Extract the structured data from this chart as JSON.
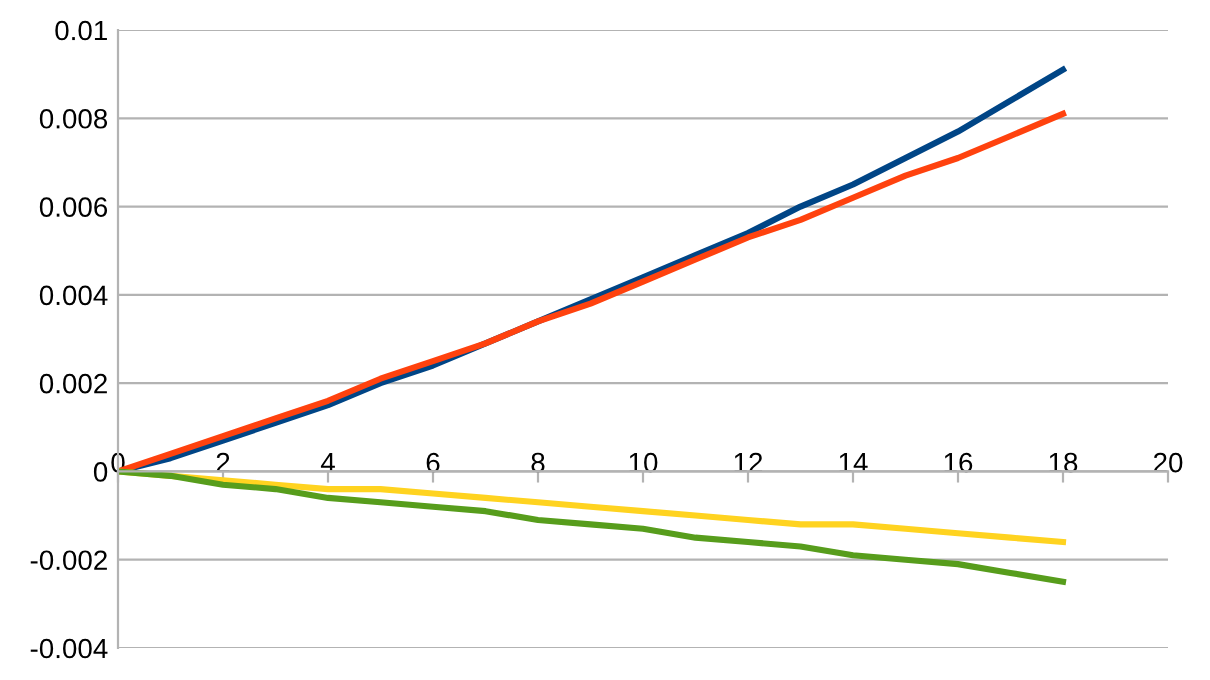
{
  "chart_data": {
    "type": "line",
    "x": [
      0,
      1,
      2,
      3,
      4,
      5,
      6,
      7,
      8,
      9,
      10,
      11,
      12,
      13,
      14,
      15,
      16,
      17,
      18
    ],
    "series": [
      {
        "color": "#004586",
        "values": [
          0,
          0.0003,
          0.0007,
          0.0011,
          0.0015,
          0.002,
          0.0024,
          0.0029,
          0.0034,
          0.0039,
          0.0044,
          0.0049,
          0.0054,
          0.006,
          0.0065,
          0.0071,
          0.0077,
          0.0084,
          0.0091
        ]
      },
      {
        "color": "#ff420e",
        "values": [
          0,
          0.0004,
          0.0008,
          0.0012,
          0.0016,
          0.0021,
          0.0025,
          0.0029,
          0.0034,
          0.0038,
          0.0043,
          0.0048,
          0.0053,
          0.0057,
          0.0062,
          0.0067,
          0.0071,
          0.0076,
          0.0081
        ]
      },
      {
        "color": "#ffd320",
        "values": [
          0,
          -0.0001,
          -0.0002,
          -0.0003,
          -0.0004,
          -0.0004,
          -0.0005,
          -0.0006,
          -0.0007,
          -0.0008,
          -0.0009,
          -0.001,
          -0.0011,
          -0.0012,
          -0.0012,
          -0.0013,
          -0.0014,
          -0.0015,
          -0.0016
        ]
      },
      {
        "color": "#579d1c",
        "values": [
          0,
          -0.0001,
          -0.0003,
          -0.0004,
          -0.0006,
          -0.0007,
          -0.0008,
          -0.0009,
          -0.0011,
          -0.0012,
          -0.0013,
          -0.0015,
          -0.0016,
          -0.0017,
          -0.0019,
          -0.002,
          -0.0021,
          -0.0023,
          -0.0025
        ]
      }
    ],
    "xlim": [
      0,
      20
    ],
    "xticks": [
      0,
      2,
      4,
      6,
      8,
      10,
      12,
      14,
      16,
      18,
      20
    ],
    "ylim": [
      -0.004,
      0.01
    ],
    "yticks": [
      -0.004,
      -0.002,
      0,
      0.002,
      0.004,
      0.006,
      0.008,
      0.01
    ],
    "grid": "y",
    "legend": false,
    "marker": "none",
    "line_style": "solid"
  }
}
